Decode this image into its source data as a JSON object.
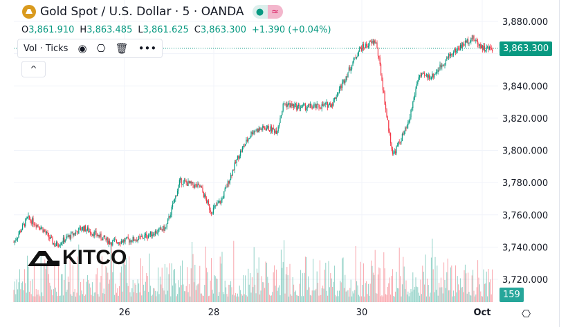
{
  "header": {
    "title": "Gold Spot / U.S. Dollar · 5 · OANDA",
    "pill_dot": "●",
    "pill_wave": "≈"
  },
  "ohlc": {
    "o_label": "O",
    "o": "3,861.910",
    "h_label": "H",
    "h": "3,863.485",
    "l_label": "L",
    "l": "3,861.625",
    "c_label": "C",
    "c": "3,863.300",
    "change": "+1.390 (+0.04%)"
  },
  "indicator": {
    "label": "Vol · Ticks",
    "icons": [
      "eye-icon",
      "settings-icon",
      "trash-icon",
      "more-icon"
    ]
  },
  "collapse_label": "^",
  "watermark": "KITCO",
  "last_price_tag": "3,863.300",
  "volume_tag": "159",
  "settings_icon": "⎔",
  "colors": {
    "up": "#089981",
    "down": "#f23645",
    "grid": "#f0f3fa"
  },
  "chart_data": {
    "type": "candlestick",
    "title": "Gold Spot / U.S. Dollar · 5 · OANDA",
    "ylim": [
      3707,
      3886
    ],
    "y_ticks": [
      3880,
      3860,
      3840,
      3820,
      3800,
      3780,
      3760,
      3740,
      3720
    ],
    "y_tick_labels": [
      "3,880.000",
      "",
      "3,840.000",
      "3,820.000",
      "3,800.000",
      "3,780.000",
      "3,760.000",
      "3,740.000",
      "3,720.000"
    ],
    "x_ticks": [
      {
        "bar": 160,
        "label": "26"
      },
      {
        "bar": 289,
        "label": "28"
      },
      {
        "bar": 503,
        "label": "30"
      },
      {
        "bar": 677,
        "label": "Oct"
      }
    ],
    "x_range": [
      0,
      700
    ],
    "close_path": [
      [
        0,
        3743
      ],
      [
        20,
        3758
      ],
      [
        40,
        3752
      ],
      [
        60,
        3741
      ],
      [
        100,
        3752
      ],
      [
        140,
        3743
      ],
      [
        180,
        3745
      ],
      [
        220,
        3752
      ],
      [
        235,
        3773
      ],
      [
        240,
        3781
      ],
      [
        270,
        3777
      ],
      [
        285,
        3762
      ],
      [
        300,
        3769
      ],
      [
        315,
        3786
      ],
      [
        325,
        3797
      ],
      [
        345,
        3812
      ],
      [
        365,
        3814
      ],
      [
        380,
        3812
      ],
      [
        390,
        3829
      ],
      [
        410,
        3827
      ],
      [
        440,
        3827
      ],
      [
        460,
        3829
      ],
      [
        480,
        3846
      ],
      [
        500,
        3863
      ],
      [
        523,
        3868
      ],
      [
        530,
        3850
      ],
      [
        540,
        3818
      ],
      [
        548,
        3797
      ],
      [
        570,
        3816
      ],
      [
        585,
        3846
      ],
      [
        605,
        3846
      ],
      [
        630,
        3859
      ],
      [
        662,
        3870
      ],
      [
        680,
        3863
      ],
      [
        692,
        3863.3
      ]
    ],
    "last_close": 3863.3,
    "last_volume": 159
  }
}
